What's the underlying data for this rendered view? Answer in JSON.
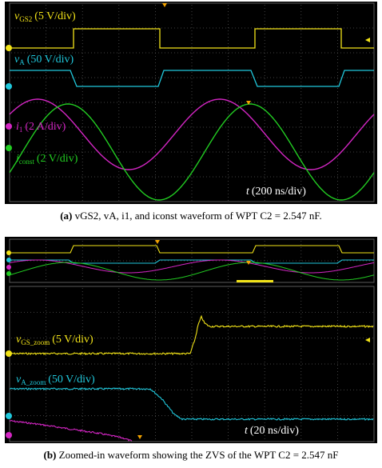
{
  "scope_a": {
    "ch_gs2_label": "v",
    "ch_gs2_sub": "GS2",
    "ch_gs2_scale": "(5 V/div)",
    "ch_a_label": "v",
    "ch_a_sub": "A",
    "ch_a_scale": "(50 V/div)",
    "ch_i1_label": "i",
    "ch_i1_sub": "1",
    "ch_i1_scale": "(2 A/div)",
    "ch_const_label": "i",
    "ch_const_sub": "const",
    "ch_const_scale": "(2 V/div)",
    "time_label": "t",
    "time_scale": "(200 ns/div)",
    "colors": {
      "gs2": "#f2e318",
      "va": "#20c8dc",
      "i1": "#d426c4",
      "iconst": "#22cc22"
    }
  },
  "scope_b": {
    "ch_gs_zoom_label": "v",
    "ch_gs_zoom_sub": "GS_zoom",
    "ch_gs_zoom_scale": "(5 V/div)",
    "ch_a_zoom_label": "v",
    "ch_a_zoom_sub": "A_zoom",
    "ch_a_zoom_scale": "(50 V/div)",
    "time_label": "t",
    "time_scale": "(20 ns/div)"
  },
  "caption_a": {
    "prefix": "(a)",
    "text": "vGS2, vA, i1, and iconst waveform of WPT C2 = 2.547 nF."
  },
  "caption_b": {
    "prefix": "(b)",
    "text": "Zoomed-in waveform showing the ZVS of the WPT C2 = 2.547 nF"
  }
}
